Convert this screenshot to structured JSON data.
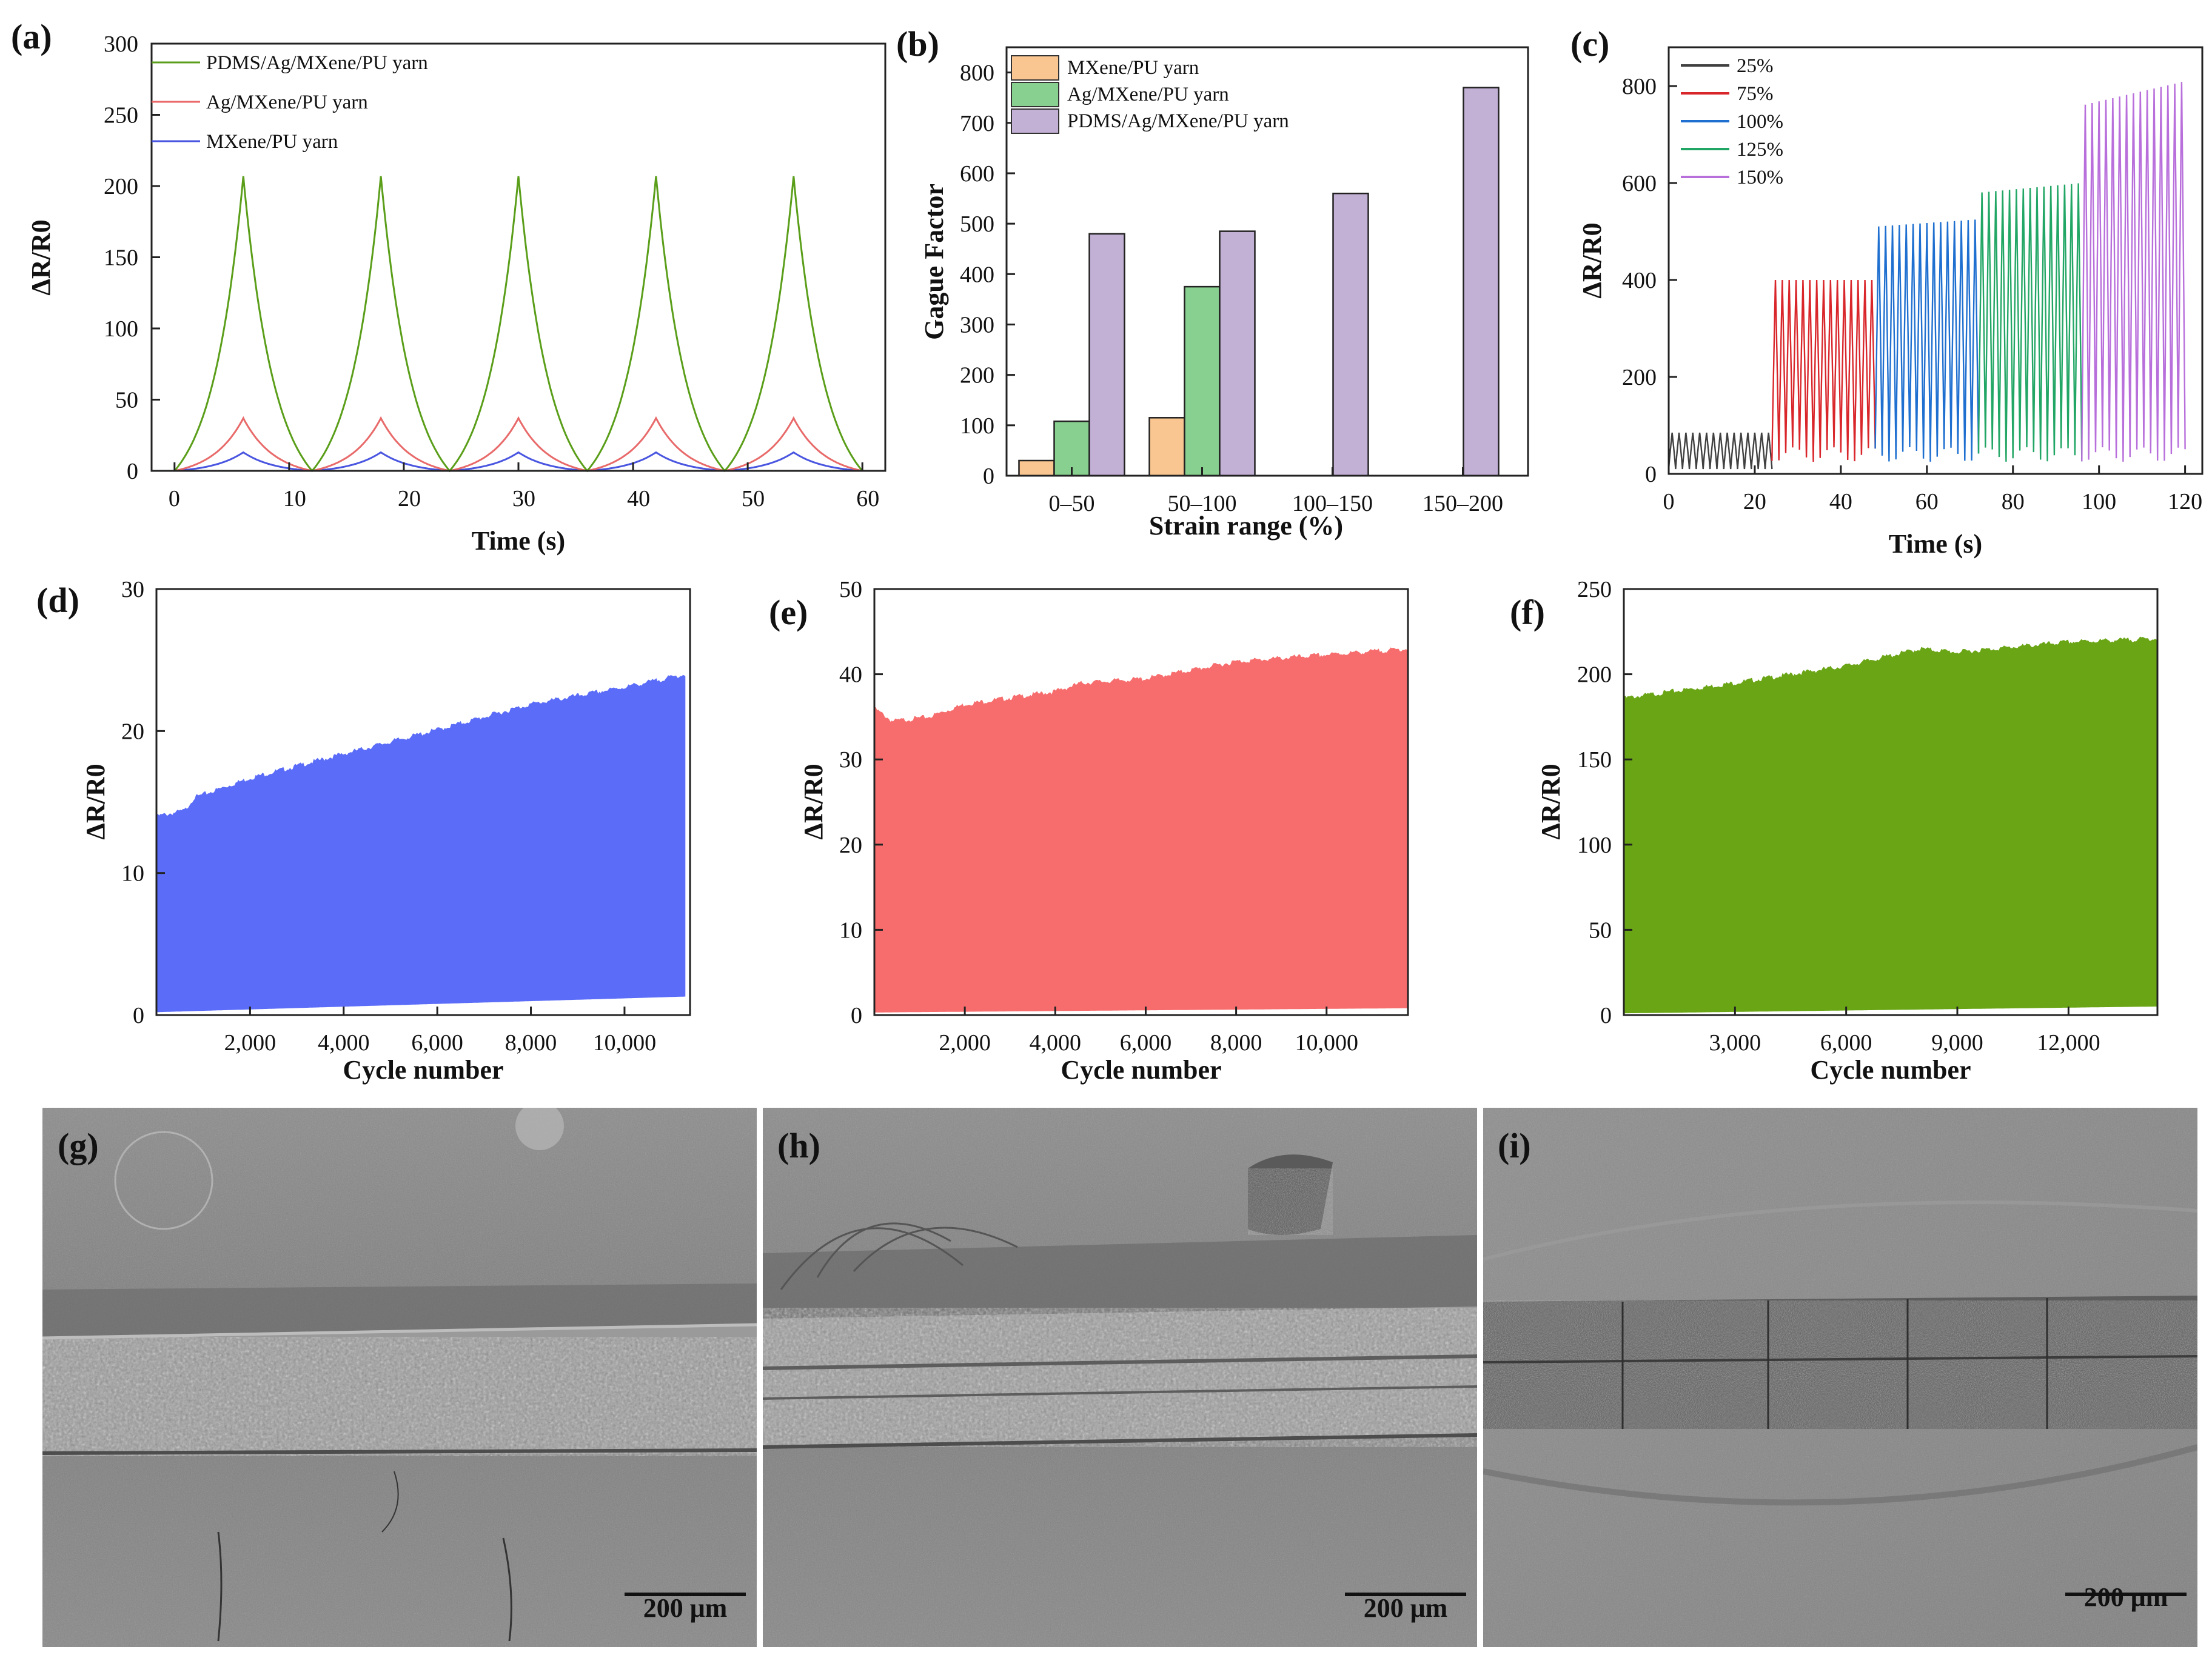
{
  "colors": {
    "green": "#5a9e1a",
    "red": "#e86a6a",
    "blue": "#4a56e0",
    "orange": "#f9c590",
    "lightgreen": "#88d090",
    "purple": "#c3b0d5",
    "c25": "#404040",
    "c75": "#d9262b",
    "c100": "#1e6fd0",
    "c125": "#22a665",
    "c150": "#b86fdb",
    "fillBlue": "#5a6cf8",
    "fillRed": "#f76d6d",
    "fillGreen": "#6aa516"
  },
  "chart_data": [
    {
      "id": "a",
      "label": "(a)",
      "type": "line",
      "xlabel": "Time (s)",
      "ylabel": "ΔR/R0",
      "xlim": [
        -2,
        62
      ],
      "ylim": [
        0,
        300
      ],
      "xticks": [
        "0",
        "10",
        "20",
        "30",
        "40",
        "50",
        "60"
      ],
      "yticks": [
        "0",
        "50",
        "100",
        "150",
        "200",
        "250",
        "300"
      ],
      "period_s": 12,
      "peak_time_s": 6,
      "series": [
        {
          "name": "PDMS/Ag/MXene/PU yarn",
          "peak": 207,
          "color_key": "green"
        },
        {
          "name": "Ag/MXene/PU yarn",
          "peak": 37,
          "color_key": "red"
        },
        {
          "name": "MXene/PU yarn",
          "peak": 13,
          "color_key": "blue"
        }
      ]
    },
    {
      "id": "b",
      "label": "(b)",
      "type": "bar",
      "xlabel": "Strain range (%)",
      "ylabel": "Gague Factor",
      "ylim": [
        0,
        850
      ],
      "yticks": [
        "0",
        "100",
        "200",
        "300",
        "400",
        "500",
        "600",
        "700",
        "800"
      ],
      "categories": [
        "0–50",
        "50–100",
        "100–150",
        "150–200"
      ],
      "series": [
        {
          "name": "MXene/PU yarn",
          "values": [
            30,
            115,
            null,
            null
          ],
          "color_key": "orange"
        },
        {
          "name": "Ag/MXene/PU yarn",
          "values": [
            108,
            375,
            null,
            null
          ],
          "color_key": "lightgreen"
        },
        {
          "name": "PDMS/Ag/MXene/PU yarn",
          "values": [
            480,
            485,
            560,
            770
          ],
          "color_key": "purple"
        }
      ]
    },
    {
      "id": "c",
      "label": "(c)",
      "type": "line",
      "xlabel": "Time (s)",
      "ylabel": "ΔR/R0",
      "xlim": [
        0,
        124
      ],
      "ylim": [
        0,
        880
      ],
      "xticks": [
        "0",
        "20",
        "40",
        "60",
        "80",
        "100",
        "120"
      ],
      "yticks": [
        "0",
        "200",
        "400",
        "600",
        "800"
      ],
      "series": [
        {
          "name": "25%",
          "t_range": [
            0,
            24
          ],
          "peak_start": 85,
          "peak_end": 85,
          "color_key": "c25"
        },
        {
          "name": "75%",
          "t_range": [
            24,
            48
          ],
          "peak_start": 400,
          "peak_end": 400,
          "color_key": "c75"
        },
        {
          "name": "100%",
          "t_range": [
            48,
            72
          ],
          "peak_start": 510,
          "peak_end": 525,
          "color_key": "c100"
        },
        {
          "name": "125%",
          "t_range": [
            72,
            96
          ],
          "peak_start": 580,
          "peak_end": 600,
          "color_key": "c125"
        },
        {
          "name": "150%",
          "t_range": [
            96,
            120
          ],
          "peak_start": 760,
          "peak_end": 810,
          "color_key": "c150"
        }
      ]
    },
    {
      "id": "d",
      "label": "(d)",
      "type": "area",
      "xlabel": "Cycle number",
      "ylabel": "ΔR/R0",
      "xlim": [
        0,
        11400
      ],
      "ylim": [
        0,
        30
      ],
      "xticks": [
        {
          "v": 2000,
          "t": "2,000"
        },
        {
          "v": 4000,
          "t": "4,000"
        },
        {
          "v": 6000,
          "t": "6,000"
        },
        {
          "v": 8000,
          "t": "8,000"
        },
        {
          "v": 10000,
          "t": "10,000"
        }
      ],
      "yticks": [
        {
          "v": 0,
          "t": "0"
        },
        {
          "v": 10,
          "t": "10"
        },
        {
          "v": 20,
          "t": "20"
        },
        {
          "v": 30,
          "t": "30"
        }
      ],
      "upper": [
        [
          0,
          14
        ],
        [
          600,
          14.4
        ],
        [
          800,
          15.3
        ],
        [
          2000,
          16.7
        ],
        [
          4000,
          18.4
        ],
        [
          6000,
          20.1
        ],
        [
          8000,
          21.9
        ],
        [
          10000,
          23.1
        ],
        [
          11300,
          24
        ]
      ],
      "lower": [
        [
          0,
          0.2
        ],
        [
          11300,
          1.3
        ]
      ],
      "color_key": "fillBlue"
    },
    {
      "id": "e",
      "label": "(e)",
      "type": "area",
      "xlabel": "Cycle number",
      "ylabel": "ΔR/R0",
      "xlim": [
        0,
        11800
      ],
      "ylim": [
        0,
        50
      ],
      "xticks": [
        {
          "v": 2000,
          "t": "2,000"
        },
        {
          "v": 4000,
          "t": "4,000"
        },
        {
          "v": 6000,
          "t": "6,000"
        },
        {
          "v": 8000,
          "t": "8,000"
        },
        {
          "v": 10000,
          "t": "10,000"
        }
      ],
      "yticks": [
        {
          "v": 0,
          "t": "0"
        },
        {
          "v": 10,
          "t": "10"
        },
        {
          "v": 20,
          "t": "20"
        },
        {
          "v": 30,
          "t": "30"
        },
        {
          "v": 40,
          "t": "40"
        },
        {
          "v": 50,
          "t": "50"
        }
      ],
      "upper": [
        [
          0,
          36
        ],
        [
          400,
          34.5
        ],
        [
          1200,
          35
        ],
        [
          2000,
          36.5
        ],
        [
          4000,
          38
        ],
        [
          4600,
          39
        ],
        [
          6000,
          39.5
        ],
        [
          8000,
          41.5
        ],
        [
          10000,
          42.3
        ],
        [
          11800,
          43
        ]
      ],
      "lower": [
        [
          0,
          0.3
        ],
        [
          11800,
          0.8
        ]
      ],
      "color_key": "fillRed"
    },
    {
      "id": "f",
      "label": "(f)",
      "type": "area",
      "xlabel": "Cycle number",
      "ylabel": "ΔR/R0",
      "xlim": [
        0,
        14400
      ],
      "ylim": [
        0,
        250
      ],
      "xticks": [
        {
          "v": 3000,
          "t": "3,000"
        },
        {
          "v": 6000,
          "t": "6,000"
        },
        {
          "v": 9000,
          "t": "9,000"
        },
        {
          "v": 12000,
          "t": "12,000"
        }
      ],
      "yticks": [
        {
          "v": 0,
          "t": "0"
        },
        {
          "v": 50,
          "t": "50"
        },
        {
          "v": 100,
          "t": "100"
        },
        {
          "v": 150,
          "t": "150"
        },
        {
          "v": 200,
          "t": "200"
        },
        {
          "v": 250,
          "t": "250"
        }
      ],
      "upper": [
        [
          0,
          186
        ],
        [
          3000,
          195
        ],
        [
          6000,
          205
        ],
        [
          8000,
          215
        ],
        [
          9000,
          213
        ],
        [
          12000,
          219
        ],
        [
          14400,
          221
        ]
      ],
      "lower": [
        [
          0,
          1
        ],
        [
          14400,
          5
        ]
      ],
      "color_key": "fillGreen"
    }
  ],
  "sem": [
    {
      "label": "(g)",
      "scale": "200 μm"
    },
    {
      "label": "(h)",
      "scale": "200 μm"
    },
    {
      "label": "(i)",
      "scale": "200 μm"
    }
  ]
}
